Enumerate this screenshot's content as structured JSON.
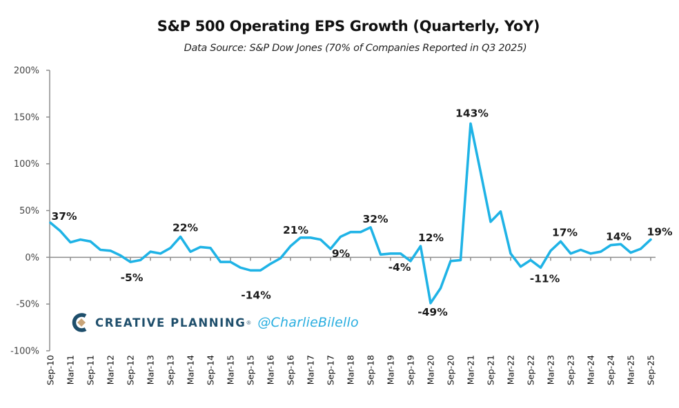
{
  "chart_data": {
    "type": "line",
    "title": "S&P 500 Operating EPS Growth (Quarterly, YoY)",
    "subtitle": "Data Source: S&P Dow Jones (70% of Companies Reported in Q3 2025)",
    "xlabel": "",
    "ylabel": "",
    "ylim": [
      -100,
      200
    ],
    "yticks": [
      200,
      150,
      100,
      50,
      0,
      -50,
      -100
    ],
    "ytick_labels": [
      "200%",
      "150%",
      "100%",
      "50%",
      "0%",
      "-50%",
      "-100%"
    ],
    "grid": false,
    "legend": "none",
    "x": [
      "Sep-10",
      "Dec-10",
      "Mar-11",
      "Jun-11",
      "Sep-11",
      "Dec-11",
      "Mar-12",
      "Jun-12",
      "Sep-12",
      "Dec-12",
      "Mar-13",
      "Jun-13",
      "Sep-13",
      "Dec-13",
      "Mar-14",
      "Jun-14",
      "Sep-14",
      "Dec-14",
      "Mar-15",
      "Jun-15",
      "Sep-15",
      "Dec-15",
      "Mar-16",
      "Jun-16",
      "Sep-16",
      "Dec-16",
      "Mar-17",
      "Jun-17",
      "Sep-17",
      "Dec-17",
      "Mar-18",
      "Jun-18",
      "Sep-18",
      "Dec-18",
      "Mar-19",
      "Jun-19",
      "Sep-19",
      "Dec-19",
      "Mar-20",
      "Jun-20",
      "Sep-20",
      "Dec-20",
      "Mar-21",
      "Jun-21",
      "Sep-21",
      "Dec-21",
      "Mar-22",
      "Jun-22",
      "Sep-22",
      "Dec-22",
      "Mar-23",
      "Jun-23",
      "Sep-23",
      "Dec-23",
      "Mar-24",
      "Jun-24",
      "Sep-24",
      "Dec-24",
      "Mar-25",
      "Jun-25",
      "Sep-25"
    ],
    "xtick_labels": [
      "Sep-10",
      "Mar-11",
      "Sep-11",
      "Mar-12",
      "Sep-12",
      "Mar-13",
      "Sep-13",
      "Mar-14",
      "Sep-14",
      "Mar-15",
      "Sep-15",
      "Mar-16",
      "Sep-16",
      "Mar-17",
      "Sep-17",
      "Mar-18",
      "Sep-18",
      "Mar-19",
      "Sep-19",
      "Mar-20",
      "Sep-20",
      "Mar-21",
      "Sep-21",
      "Mar-22",
      "Sep-22",
      "Mar-23",
      "Sep-23",
      "Mar-24",
      "Sep-24",
      "Mar-25",
      "Sep-25"
    ],
    "series": [
      {
        "name": "S&P 500 Operating EPS Growth (YoY)",
        "color": "#1fb3e6",
        "values": [
          37,
          28,
          16,
          19,
          17,
          8,
          7,
          2,
          -5,
          -3,
          6,
          4,
          10,
          22,
          6,
          11,
          10,
          -5,
          -5,
          -11,
          -14,
          -14,
          -7,
          -1,
          12,
          21,
          21,
          19,
          9,
          22,
          27,
          27,
          32,
          3,
          4,
          4,
          -4,
          12,
          -49,
          -33,
          -4,
          -3,
          143,
          91,
          38,
          49,
          4,
          -10,
          -3,
          -11,
          7,
          17,
          4,
          8,
          4,
          6,
          13,
          14,
          5,
          9,
          19
        ]
      }
    ],
    "annotations": [
      {
        "index": 0,
        "text": "37%"
      },
      {
        "index": 8,
        "text": "-5%"
      },
      {
        "index": 13,
        "text": "22%"
      },
      {
        "index": 20,
        "text": "-14%"
      },
      {
        "index": 25,
        "text": "21%"
      },
      {
        "index": 28,
        "text": "9%"
      },
      {
        "index": 32,
        "text": "32%"
      },
      {
        "index": 36,
        "text": "-4%"
      },
      {
        "index": 37,
        "text": "12%"
      },
      {
        "index": 38,
        "text": "-49%"
      },
      {
        "index": 42,
        "text": "143%"
      },
      {
        "index": 49,
        "text": "-11%"
      },
      {
        "index": 51,
        "text": "17%"
      },
      {
        "index": 57,
        "text": "14%"
      },
      {
        "index": 60,
        "text": "19%"
      }
    ]
  },
  "watermark": {
    "brand": "CREATIVE PLANNING",
    "registered_mark": "®",
    "handle": "@CharlieBilello",
    "brand_color": "#1e4e6b",
    "logo_accent_color": "#c9a478",
    "handle_color": "#29aee0"
  }
}
